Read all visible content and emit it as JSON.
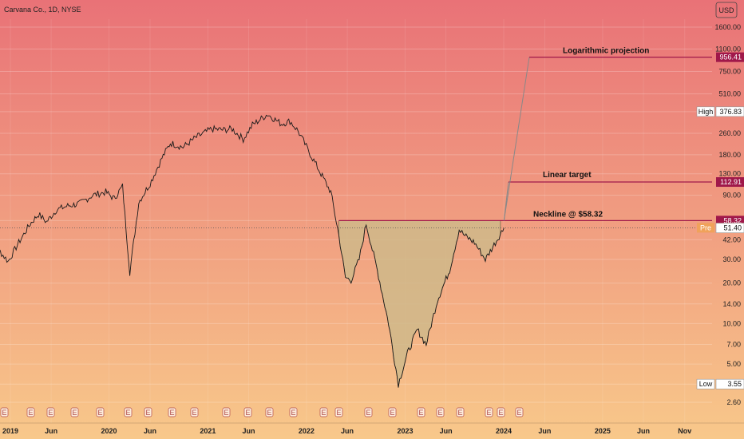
{
  "chart_data": {
    "type": "line",
    "title": "Carvana Co., 1D, NYSE",
    "currency": "USD",
    "scale": "log",
    "ylim": [
      2.2,
      2400
    ],
    "y_ticks": [
      2.6,
      3.55,
      5.0,
      7.0,
      10.0,
      14.0,
      20.0,
      30.0,
      42.0,
      58.32,
      90.0,
      130.0,
      180.0,
      260.0,
      376.83,
      510.0,
      750.0,
      1100.0,
      1600.0
    ],
    "y_tick_labels": [
      "2.60",
      "",
      "5.00",
      "7.00",
      "10.00",
      "14.00",
      "20.00",
      "30.00",
      "42.00",
      "",
      "90.00",
      "130.00",
      "180.00",
      "260.00",
      "",
      "510.00",
      "750.00",
      "1100.00",
      "1600.00"
    ],
    "x_ticks": [
      {
        "label": "2019",
        "date": "2019-01-01"
      },
      {
        "label": "Jun",
        "date": "2019-06-01"
      },
      {
        "label": "2020",
        "date": "2020-01-01"
      },
      {
        "label": "Jun",
        "date": "2020-06-01"
      },
      {
        "label": "2021",
        "date": "2021-01-01"
      },
      {
        "label": "Jun",
        "date": "2021-06-01"
      },
      {
        "label": "2022",
        "date": "2022-01-01"
      },
      {
        "label": "Jun",
        "date": "2022-06-01"
      },
      {
        "label": "2023",
        "date": "2023-01-01"
      },
      {
        "label": "Jun",
        "date": "2023-06-01"
      },
      {
        "label": "2024",
        "date": "2024-01-01"
      },
      {
        "label": "Jun",
        "date": "2024-06-01"
      },
      {
        "label": "2025",
        "date": "2025-01-01"
      },
      {
        "label": "Jun",
        "date": "2025-06-01"
      },
      {
        "label": "Nov",
        "date": "2025-11-01"
      }
    ],
    "series": [
      {
        "name": "",
        "color": "#1a1a1a",
        "points": [
          [
            "2018-10-01",
            42
          ],
          [
            "2018-11-15",
            36
          ],
          [
            "2018-12-24",
            29
          ],
          [
            "2019-02-01",
            40
          ],
          [
            "2019-03-15",
            55
          ],
          [
            "2019-04-15",
            65
          ],
          [
            "2019-05-15",
            57
          ],
          [
            "2019-06-20",
            70
          ],
          [
            "2019-08-01",
            75
          ],
          [
            "2019-09-15",
            78
          ],
          [
            "2019-11-01",
            90
          ],
          [
            "2019-12-20",
            95
          ],
          [
            "2020-01-20",
            85
          ],
          [
            "2020-02-20",
            105
          ],
          [
            "2020-03-18",
            24
          ],
          [
            "2020-04-20",
            80
          ],
          [
            "2020-06-01",
            110
          ],
          [
            "2020-07-15",
            170
          ],
          [
            "2020-08-15",
            220
          ],
          [
            "2020-10-01",
            205
          ],
          [
            "2020-11-15",
            240
          ],
          [
            "2021-01-15",
            280
          ],
          [
            "2021-03-01",
            275
          ],
          [
            "2021-04-01",
            280
          ],
          [
            "2021-05-12",
            235
          ],
          [
            "2021-06-15",
            300
          ],
          [
            "2021-08-10",
            360
          ],
          [
            "2021-09-30",
            305
          ],
          [
            "2021-11-01",
            320
          ],
          [
            "2021-12-01",
            270
          ],
          [
            "2022-01-10",
            190
          ],
          [
            "2022-02-15",
            140
          ],
          [
            "2022-04-01",
            95
          ],
          [
            "2022-05-01",
            45
          ],
          [
            "2022-05-25",
            22
          ],
          [
            "2022-06-15",
            21
          ],
          [
            "2022-07-15",
            30
          ],
          [
            "2022-08-10",
            55
          ],
          [
            "2022-09-20",
            25
          ],
          [
            "2022-11-01",
            10
          ],
          [
            "2022-12-07",
            3.55
          ],
          [
            "2023-01-10",
            6
          ],
          [
            "2023-02-15",
            9
          ],
          [
            "2023-03-20",
            7
          ],
          [
            "2023-05-01",
            15
          ],
          [
            "2023-06-15",
            25
          ],
          [
            "2023-07-20",
            50
          ],
          [
            "2023-08-10",
            45
          ],
          [
            "2023-09-15",
            40
          ],
          [
            "2023-10-25",
            30
          ],
          [
            "2023-12-01",
            40
          ],
          [
            "2024-01-02",
            51.4
          ]
        ]
      }
    ],
    "shaded_region": {
      "label": "",
      "color": "#cfb88a",
      "neckline": 58.32
    },
    "levels": [
      {
        "label": "Neckline @ $58.32",
        "value": 58.32,
        "color": "#a0184a"
      },
      {
        "label": "Linear target",
        "value": 112.91,
        "color": "#a0184a"
      },
      {
        "label": "Logarithmic projection",
        "value": 956.41,
        "color": "#a0184a"
      }
    ],
    "current_price": 51.4,
    "pre_market": 51.6,
    "high": 376.83,
    "low": 3.55,
    "price_tags": [
      {
        "label": "",
        "value": "956.41",
        "color": "#a0184a"
      },
      {
        "label": "High",
        "value": "376.83",
        "color": "#ffffff"
      },
      {
        "label": "",
        "value": "112.91",
        "color": "#a0184a"
      },
      {
        "label": "",
        "value": "58.32",
        "color": "#a0184a"
      },
      {
        "label": "Pre",
        "value": "51.60",
        "color": "#f0a25a"
      },
      {
        "label": "",
        "value": "51.40",
        "color": "#ffffff"
      },
      {
        "label": "Low",
        "value": "3.55",
        "color": "#ffffff"
      }
    ],
    "events": [
      "E",
      "E",
      "E",
      "E",
      "E",
      "E",
      "E",
      "E",
      "E",
      "E",
      "E",
      "E",
      "E",
      "E",
      "E",
      "E",
      "E",
      "E",
      "E",
      "E",
      "E",
      "E",
      "E",
      "E"
    ],
    "background": {
      "top": "#e97277",
      "bottom": "#f8c88a"
    }
  }
}
